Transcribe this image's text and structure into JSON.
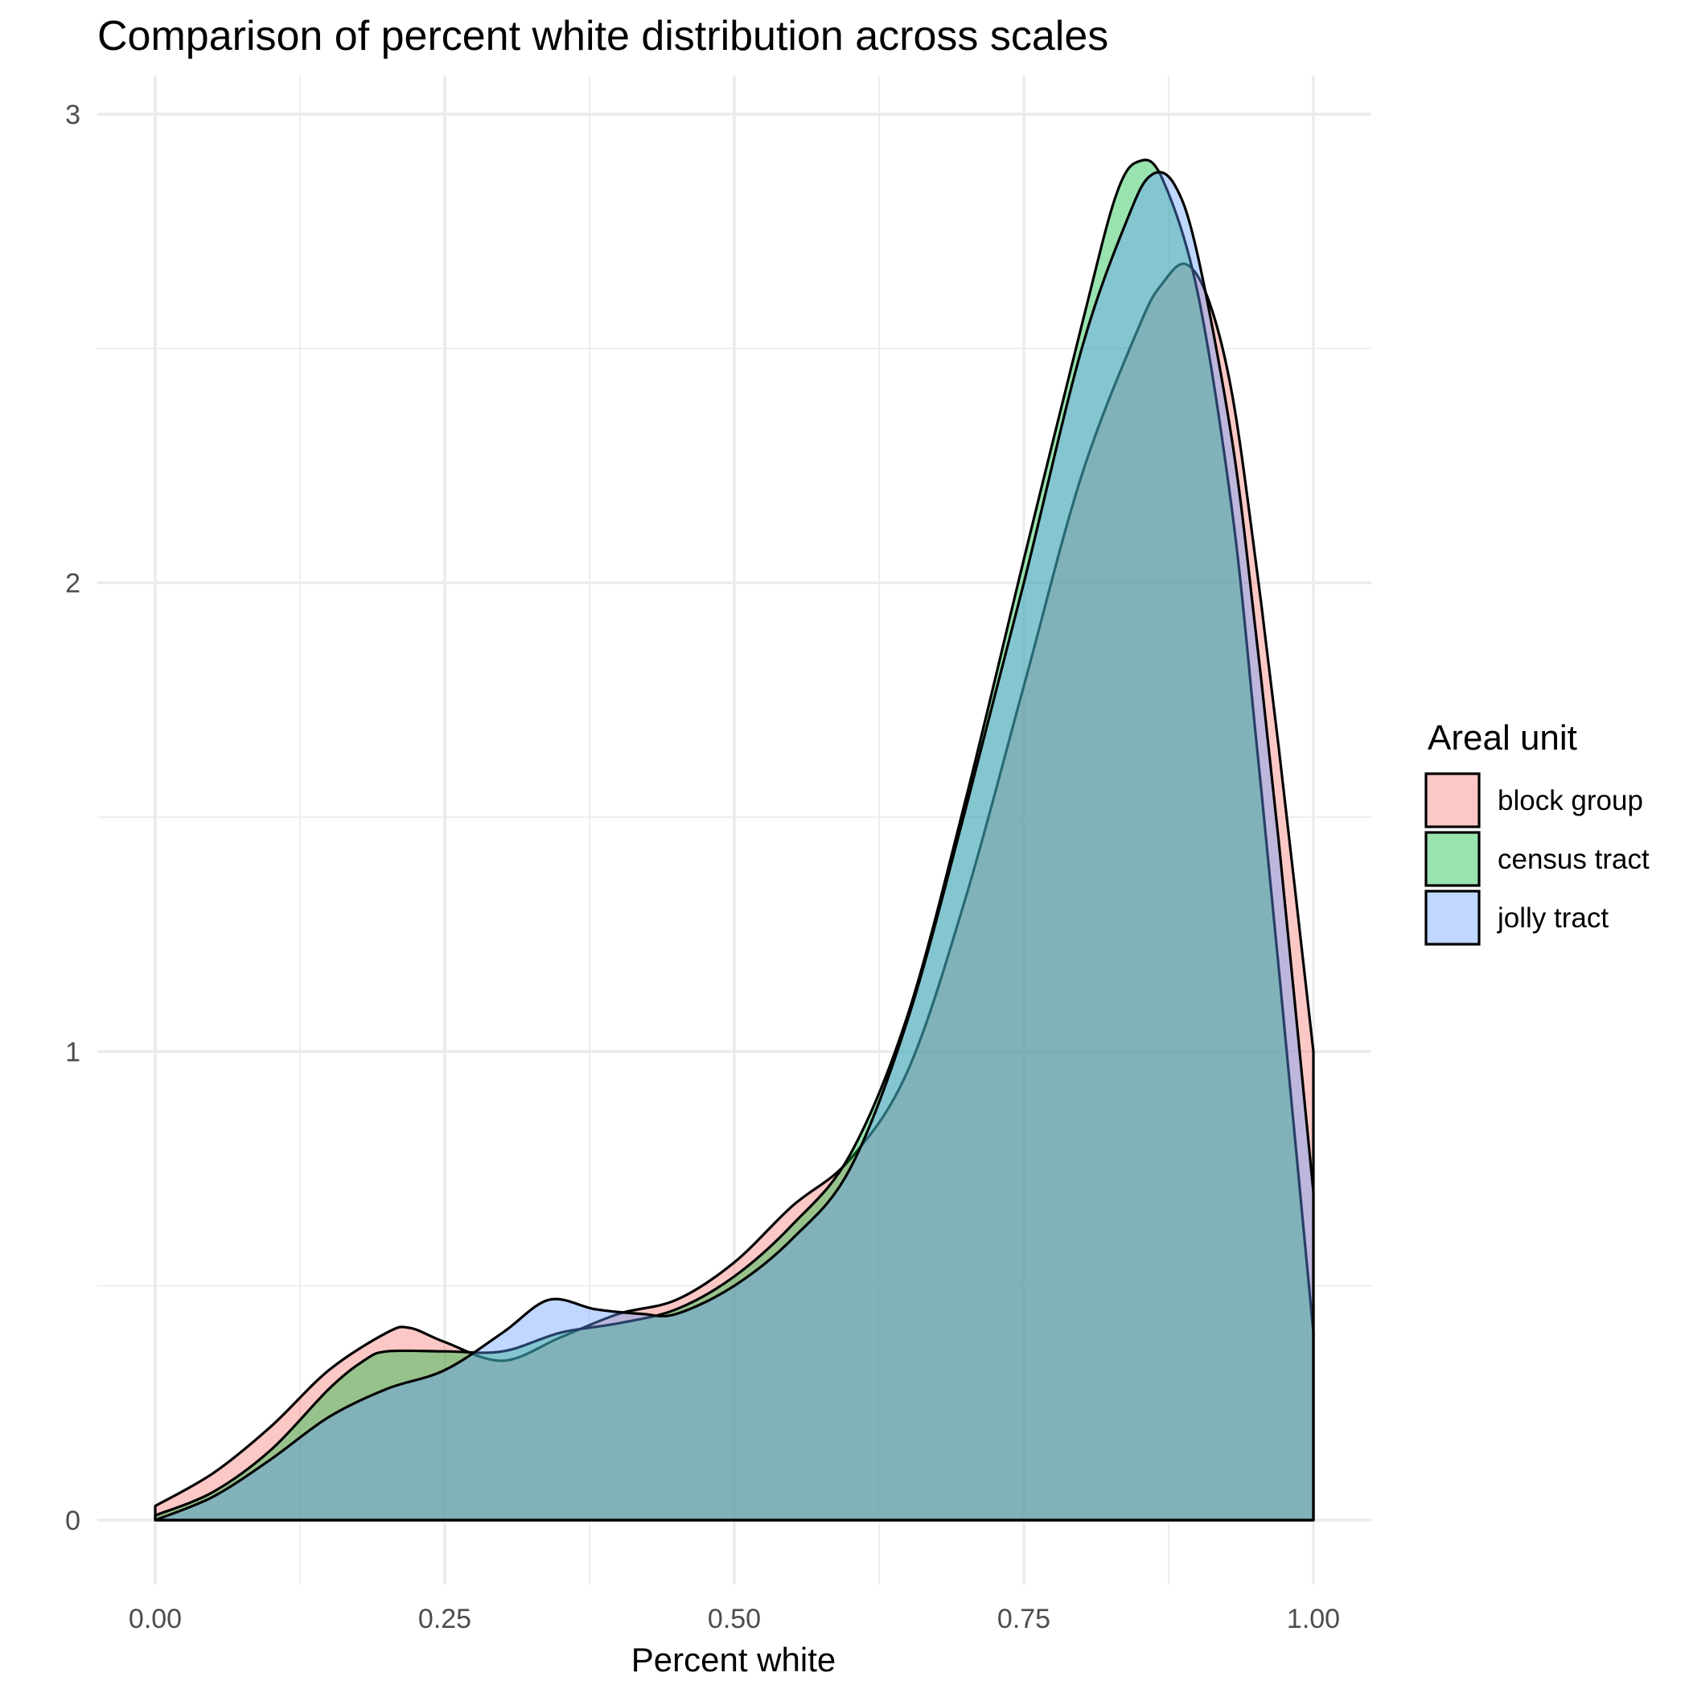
{
  "chart_data": {
    "type": "area",
    "subtype": "density",
    "title": "Comparison of percent white distribution across scales",
    "xlabel": "Percent white",
    "ylabel": "",
    "xlim": [
      0,
      1
    ],
    "ylim": [
      0,
      3
    ],
    "x_ticks": [
      "0.00",
      "0.25",
      "0.50",
      "0.75",
      "1.00"
    ],
    "y_ticks": [
      "0",
      "1",
      "2",
      "3"
    ],
    "grid": true,
    "legend": {
      "title": "Areal unit",
      "position": "right",
      "entries": [
        "block group",
        "census tract",
        "jolly tract"
      ]
    },
    "series": [
      {
        "name": "block group",
        "color": "#F8766D",
        "x": [
          0,
          0.05,
          0.1,
          0.15,
          0.2,
          0.22,
          0.25,
          0.3,
          0.35,
          0.4,
          0.45,
          0.5,
          0.55,
          0.6,
          0.65,
          0.7,
          0.75,
          0.8,
          0.85,
          0.87,
          0.89,
          0.91,
          0.93,
          0.95,
          0.97,
          1.0
        ],
        "y": [
          0.03,
          0.1,
          0.2,
          0.32,
          0.4,
          0.41,
          0.38,
          0.34,
          0.39,
          0.44,
          0.47,
          0.55,
          0.67,
          0.77,
          0.96,
          1.33,
          1.78,
          2.23,
          2.55,
          2.64,
          2.68,
          2.6,
          2.4,
          2.05,
          1.65,
          1.0
        ]
      },
      {
        "name": "census tract",
        "color": "#00BA38",
        "x": [
          0,
          0.05,
          0.1,
          0.15,
          0.18,
          0.2,
          0.25,
          0.3,
          0.35,
          0.4,
          0.45,
          0.5,
          0.55,
          0.6,
          0.65,
          0.7,
          0.75,
          0.8,
          0.83,
          0.85,
          0.87,
          0.9,
          0.93,
          0.95,
          0.97,
          1.0
        ],
        "y": [
          0.01,
          0.06,
          0.15,
          0.28,
          0.34,
          0.36,
          0.36,
          0.36,
          0.4,
          0.42,
          0.45,
          0.52,
          0.63,
          0.78,
          1.08,
          1.54,
          2.05,
          2.55,
          2.83,
          2.9,
          2.86,
          2.62,
          2.15,
          1.68,
          1.18,
          0.4
        ]
      },
      {
        "name": "jolly tract",
        "color": "#619CFF",
        "x": [
          0,
          0.05,
          0.1,
          0.15,
          0.2,
          0.25,
          0.3,
          0.34,
          0.38,
          0.42,
          0.45,
          0.5,
          0.55,
          0.6,
          0.65,
          0.7,
          0.75,
          0.8,
          0.84,
          0.86,
          0.88,
          0.9,
          0.93,
          0.95,
          0.97,
          1.0
        ],
        "y": [
          0.0,
          0.05,
          0.13,
          0.22,
          0.28,
          0.32,
          0.4,
          0.47,
          0.45,
          0.44,
          0.44,
          0.5,
          0.6,
          0.75,
          1.07,
          1.52,
          2.0,
          2.5,
          2.78,
          2.87,
          2.85,
          2.7,
          2.3,
          1.9,
          1.45,
          0.7
        ]
      }
    ]
  }
}
